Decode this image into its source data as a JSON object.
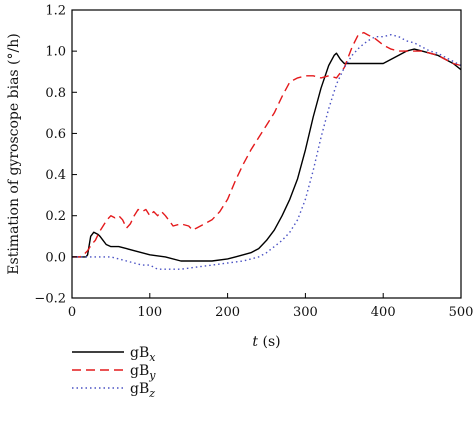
{
  "chart_data": {
    "type": "line",
    "xlabel": {
      "var": "t",
      "unit": " (s)"
    },
    "ylabel": "Estimation of gyroscope bias (°/h)",
    "xlim": [
      0,
      500
    ],
    "ylim": [
      -0.2,
      1.2
    ],
    "x_ticks": [
      "0",
      "100",
      "200",
      "300",
      "400",
      "500"
    ],
    "y_ticks": [
      "−0.2",
      "0.0",
      "0.2",
      "0.4",
      "0.6",
      "0.8",
      "1.0",
      "1.2"
    ],
    "grid": false,
    "legend_position": "bottom-left, below the plot",
    "series": [
      {
        "name": "gBx",
        "label_base": "gB",
        "label_sub": "x",
        "color": "#000000",
        "style": "solid",
        "x": [
          0,
          18,
          20,
          24,
          28,
          33,
          36,
          40,
          44,
          50,
          60,
          70,
          80,
          100,
          120,
          140,
          160,
          180,
          200,
          210,
          220,
          230,
          240,
          250,
          260,
          270,
          280,
          290,
          300,
          310,
          320,
          330,
          337,
          340,
          345,
          350,
          360,
          380,
          400,
          420,
          430,
          440,
          450,
          460,
          470,
          480,
          490,
          500
        ],
        "y": [
          0.0,
          0.0,
          0.01,
          0.1,
          0.12,
          0.11,
          0.1,
          0.08,
          0.06,
          0.05,
          0.05,
          0.04,
          0.03,
          0.01,
          0.0,
          -0.02,
          -0.02,
          -0.02,
          -0.01,
          0.0,
          0.01,
          0.02,
          0.04,
          0.08,
          0.13,
          0.2,
          0.28,
          0.38,
          0.52,
          0.68,
          0.82,
          0.93,
          0.98,
          0.99,
          0.96,
          0.94,
          0.94,
          0.94,
          0.94,
          0.98,
          1.0,
          1.01,
          1.0,
          0.99,
          0.98,
          0.96,
          0.94,
          0.91
        ]
      },
      {
        "name": "gBy",
        "label_base": "gB",
        "label_sub": "y",
        "color": "#e41a1c",
        "style": "dashed",
        "x": [
          0,
          10,
          15,
          20,
          25,
          30,
          35,
          40,
          45,
          50,
          55,
          60,
          65,
          70,
          75,
          80,
          85,
          90,
          95,
          100,
          105,
          110,
          115,
          120,
          130,
          140,
          150,
          155,
          160,
          170,
          180,
          190,
          200,
          210,
          220,
          230,
          240,
          250,
          260,
          270,
          280,
          290,
          300,
          310,
          320,
          330,
          340,
          350,
          360,
          368,
          375,
          380,
          390,
          400,
          410,
          420,
          430,
          440,
          450,
          460,
          470,
          480,
          490,
          500
        ],
        "y": [
          0.0,
          0.0,
          0.01,
          0.03,
          0.06,
          0.08,
          0.12,
          0.15,
          0.18,
          0.2,
          0.19,
          0.2,
          0.18,
          0.14,
          0.16,
          0.2,
          0.23,
          0.22,
          0.23,
          0.2,
          0.22,
          0.2,
          0.22,
          0.2,
          0.15,
          0.16,
          0.15,
          0.13,
          0.14,
          0.16,
          0.18,
          0.22,
          0.28,
          0.37,
          0.45,
          0.52,
          0.58,
          0.64,
          0.7,
          0.78,
          0.85,
          0.87,
          0.88,
          0.88,
          0.87,
          0.88,
          0.87,
          0.92,
          1.02,
          1.08,
          1.09,
          1.08,
          1.06,
          1.03,
          1.01,
          1.0,
          1.0,
          1.0,
          1.0,
          0.99,
          0.98,
          0.96,
          0.94,
          0.93
        ]
      },
      {
        "name": "gBz",
        "label_base": "gB",
        "label_sub": "z",
        "color": "#4a52c4",
        "style": "dotted",
        "x": [
          0,
          20,
          40,
          50,
          60,
          70,
          80,
          90,
          100,
          110,
          120,
          140,
          160,
          180,
          200,
          220,
          240,
          250,
          260,
          270,
          280,
          290,
          300,
          310,
          320,
          330,
          340,
          350,
          360,
          370,
          380,
          390,
          400,
          410,
          420,
          430,
          440,
          450,
          460,
          470,
          480,
          490,
          500
        ],
        "y": [
          0.0,
          0.0,
          0.0,
          0.0,
          -0.01,
          -0.02,
          -0.03,
          -0.04,
          -0.04,
          -0.06,
          -0.06,
          -0.06,
          -0.05,
          -0.04,
          -0.03,
          -0.02,
          0.0,
          0.02,
          0.05,
          0.08,
          0.12,
          0.18,
          0.28,
          0.42,
          0.58,
          0.72,
          0.84,
          0.92,
          0.98,
          1.02,
          1.05,
          1.07,
          1.07,
          1.08,
          1.07,
          1.05,
          1.04,
          1.02,
          1.0,
          0.99,
          0.97,
          0.95,
          0.93
        ]
      }
    ]
  }
}
